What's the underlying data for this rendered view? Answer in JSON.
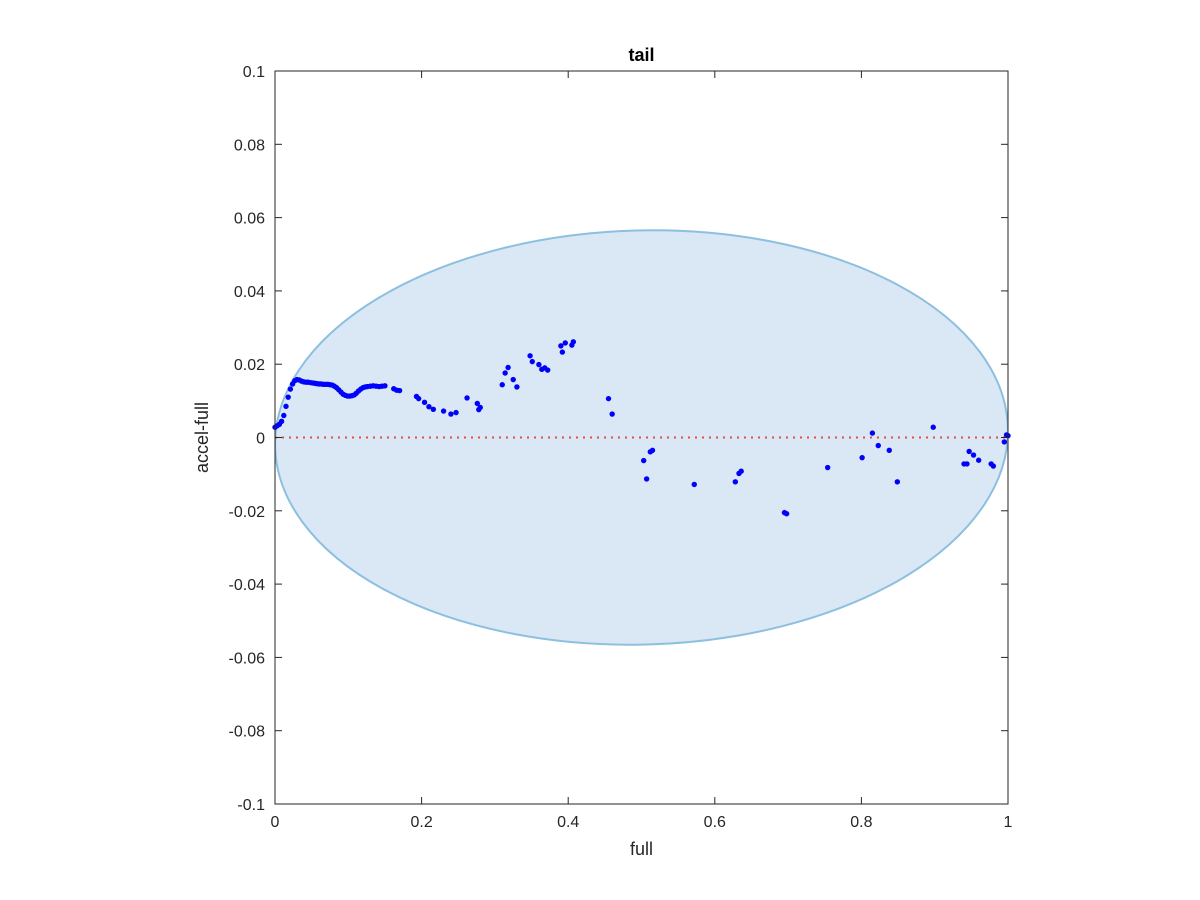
{
  "chart_data": {
    "type": "scatter",
    "title": "tail",
    "xlabel": "full",
    "ylabel": "accel-full",
    "xlim": [
      0,
      1
    ],
    "ylim": [
      -0.1,
      0.1
    ],
    "xticks": [
      0,
      0.2,
      0.4,
      0.6,
      0.8,
      1
    ],
    "xtick_labels": [
      "0",
      "0.2",
      "0.4",
      "0.6",
      "0.8",
      "1"
    ],
    "yticks": [
      -0.1,
      -0.08,
      -0.06,
      -0.04,
      -0.02,
      0,
      0.02,
      0.04,
      0.06,
      0.08,
      0.1
    ],
    "ytick_labels": [
      "-0.1",
      "-0.08",
      "-0.06",
      "-0.04",
      "-0.02",
      "0",
      "0.02",
      "0.04",
      "0.06",
      "0.08",
      "0.1"
    ],
    "grid": false,
    "reference_line": {
      "y": 0,
      "style": "dotted",
      "color": "#e8474a"
    },
    "ellipse": {
      "cx": 0.5,
      "cy": 0,
      "rx": 0.5,
      "ry": 0.0565,
      "angle_deg": -1.5,
      "fill": "#d9e8f4",
      "stroke": "#8dbfe0"
    },
    "series": [
      {
        "color": "#0000ff",
        "x": [
          0.0,
          0.003,
          0.006,
          0.009,
          0.012,
          0.015,
          0.018,
          0.021,
          0.024,
          0.027,
          0.03,
          0.033,
          0.036,
          0.039,
          0.042,
          0.045,
          0.048,
          0.051,
          0.054,
          0.057,
          0.06,
          0.063,
          0.066,
          0.069,
          0.072,
          0.075,
          0.078,
          0.081,
          0.084,
          0.087,
          0.09,
          0.093,
          0.096,
          0.099,
          0.102,
          0.105,
          0.108,
          0.111,
          0.114,
          0.117,
          0.12,
          0.123,
          0.126,
          0.13,
          0.134,
          0.138,
          0.142,
          0.146,
          0.15,
          0.162,
          0.166,
          0.17,
          0.193,
          0.196,
          0.204,
          0.21,
          0.216,
          0.23,
          0.24,
          0.247,
          0.262,
          0.276,
          0.28,
          0.278,
          0.31,
          0.314,
          0.318,
          0.325,
          0.33,
          0.348,
          0.351,
          0.36,
          0.364,
          0.368,
          0.372,
          0.39,
          0.392,
          0.396,
          0.405,
          0.407,
          0.455,
          0.46,
          0.503,
          0.507,
          0.512,
          0.515,
          0.572,
          0.628,
          0.633,
          0.636,
          0.695,
          0.698,
          0.754,
          0.801,
          0.815,
          0.823,
          0.838,
          0.849,
          0.898,
          0.94,
          0.944,
          0.947,
          0.953,
          0.96,
          0.977,
          0.98,
          0.995,
          0.998,
          1.0
        ],
        "y": [
          0.0028,
          0.0032,
          0.0036,
          0.0044,
          0.006,
          0.0085,
          0.011,
          0.0132,
          0.0146,
          0.0155,
          0.0158,
          0.0157,
          0.0154,
          0.0152,
          0.0151,
          0.0151,
          0.015,
          0.0149,
          0.0148,
          0.0147,
          0.0146,
          0.0146,
          0.0145,
          0.0145,
          0.0145,
          0.0144,
          0.0143,
          0.014,
          0.0136,
          0.013,
          0.0124,
          0.0118,
          0.0115,
          0.0113,
          0.0113,
          0.0114,
          0.0116,
          0.0121,
          0.0127,
          0.0132,
          0.0136,
          0.0138,
          0.0139,
          0.014,
          0.0141,
          0.014,
          0.0139,
          0.014,
          0.0141,
          0.0133,
          0.0129,
          0.0128,
          0.0112,
          0.0106,
          0.0096,
          0.0084,
          0.0077,
          0.0072,
          0.0064,
          0.0068,
          0.0108,
          0.0093,
          0.0082,
          0.0076,
          0.0144,
          0.0176,
          0.0191,
          0.0158,
          0.0138,
          0.0223,
          0.0207,
          0.0199,
          0.0186,
          0.019,
          0.0184,
          0.025,
          0.0233,
          0.0258,
          0.0252,
          0.0261,
          0.0106,
          0.0064,
          -0.0063,
          -0.0113,
          -0.0039,
          -0.0035,
          -0.0128,
          -0.0121,
          -0.0098,
          -0.0092,
          -0.0205,
          -0.0208,
          -0.0082,
          -0.0055,
          0.0012,
          -0.0022,
          -0.0035,
          -0.0121,
          0.0028,
          -0.0072,
          -0.0072,
          -0.0038,
          -0.0048,
          -0.0062,
          -0.0072,
          -0.0078,
          -0.0012,
          0.0007,
          0.0005
        ]
      }
    ]
  }
}
